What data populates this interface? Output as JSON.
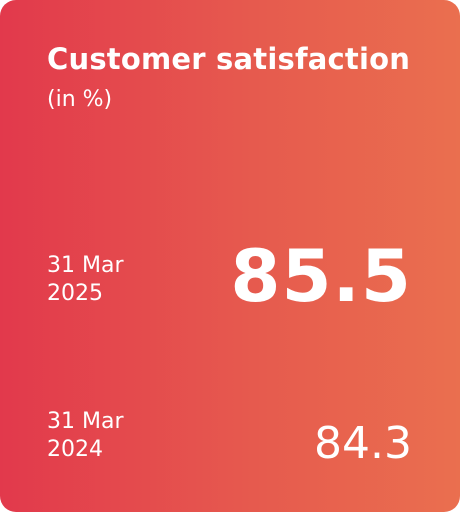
{
  "card": {
    "title": "Customer satisfaction",
    "subtitle": "(in %)",
    "current": {
      "date_line1": "31 Mar",
      "date_line2": "2025",
      "value": "85.5"
    },
    "previous": {
      "date_line1": "31 Mar",
      "date_line2": "2024",
      "value": "84.3"
    },
    "colors": {
      "gradient_start": "#e2394c",
      "gradient_end": "#ea6f4f",
      "text": "#ffffff"
    }
  }
}
